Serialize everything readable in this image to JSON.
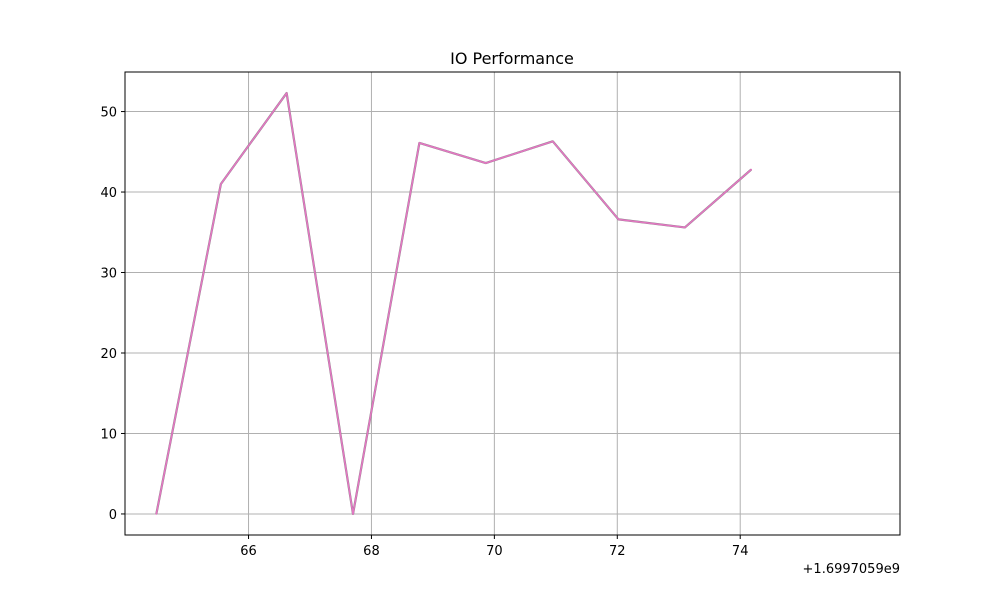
{
  "chart_data": {
    "type": "line",
    "title": "IO Performance",
    "xlabel": "",
    "ylabel": "",
    "x_offset_label": "+1.6997059e9",
    "x": [
      64.5,
      65.55,
      66.62,
      67.7,
      68.78,
      69.86,
      70.95,
      72.02,
      73.1,
      74.18
    ],
    "series": [
      {
        "values": [
          0,
          41.0,
          52.3,
          0,
          46.1,
          43.6,
          46.3,
          36.6,
          35.6,
          42.8
        ]
      }
    ],
    "xlim": [
      63.99,
      76.6
    ],
    "ylim": [
      -2.615,
      54.915
    ],
    "xticks": [
      66,
      68,
      70,
      72,
      74
    ],
    "yticks": [
      0,
      10,
      20,
      30,
      40,
      50
    ],
    "grid": true,
    "colors": {
      "line": "#e377c2",
      "line_under": "#7f7f7f",
      "grid": "#b0b0b0",
      "axes": "#000000"
    }
  }
}
